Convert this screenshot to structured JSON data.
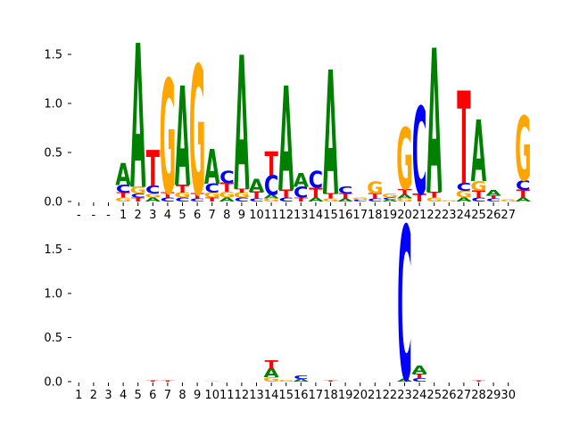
{
  "chart_data": [
    {
      "type": "sequence-logo",
      "title": "",
      "xlabel": "",
      "ylabel": "",
      "ylim": [
        0,
        1.6
      ],
      "yticks": [
        "0.0",
        "0.5",
        "1.0",
        "1.5"
      ],
      "grid": false,
      "positions": [
        "-",
        "-",
        "-",
        "1",
        "2",
        "3",
        "4",
        "5",
        "6",
        "7",
        "8",
        "9",
        "10",
        "11",
        "12",
        "13",
        "14",
        "15",
        "16",
        "17",
        "18",
        "19",
        "20",
        "21",
        "22",
        "23",
        "24",
        "25",
        "26",
        "27"
      ],
      "stacks": [
        [],
        [],
        [],
        [
          [
            "G",
            0.04
          ],
          [
            "T",
            0.05
          ],
          [
            "C",
            0.08
          ],
          [
            "A",
            0.22
          ]
        ],
        [
          [
            "T",
            0.04
          ],
          [
            "C",
            0.04
          ],
          [
            "G",
            0.07
          ],
          [
            "A",
            1.45
          ]
        ],
        [
          [
            "A",
            0.04
          ],
          [
            "G",
            0.04
          ],
          [
            "C",
            0.08
          ],
          [
            "T",
            0.36
          ]
        ],
        [
          [
            "C",
            0.04
          ],
          [
            "T",
            0.05
          ],
          [
            "G",
            1.15
          ]
        ],
        [
          [
            "C",
            0.04
          ],
          [
            "G",
            0.05
          ],
          [
            "T",
            0.08
          ],
          [
            "A",
            1.0
          ]
        ],
        [
          [
            "C",
            0.03
          ],
          [
            "T",
            0.05
          ],
          [
            "G",
            1.3
          ]
        ],
        [
          [
            "T",
            0.04
          ],
          [
            "G",
            0.05
          ],
          [
            "C",
            0.09
          ],
          [
            "A",
            0.35
          ]
        ],
        [
          [
            "A",
            0.04
          ],
          [
            "G",
            0.06
          ],
          [
            "T",
            0.09
          ],
          [
            "C",
            0.12
          ]
        ],
        [
          [
            "C",
            0.04
          ],
          [
            "G",
            0.05
          ],
          [
            "T",
            0.04
          ],
          [
            "A",
            1.35
          ]
        ],
        [
          [
            "C",
            0.03
          ],
          [
            "T",
            0.07
          ],
          [
            "A",
            0.13
          ]
        ],
        [
          [
            "G",
            0.03
          ],
          [
            "A",
            0.04
          ],
          [
            "C",
            0.2
          ],
          [
            "T",
            0.24
          ]
        ],
        [
          [
            "C",
            0.04
          ],
          [
            "T",
            0.08
          ],
          [
            "A",
            1.05
          ]
        ],
        [
          [
            "T",
            0.04
          ],
          [
            "C",
            0.11
          ],
          [
            "A",
            0.14
          ]
        ],
        [
          [
            "A",
            0.04
          ],
          [
            "T",
            0.1
          ],
          [
            "C",
            0.17
          ]
        ],
        [
          [
            "G",
            0.03
          ],
          [
            "T",
            0.05
          ],
          [
            "A",
            1.25
          ]
        ],
        [
          [
            "A",
            0.03
          ],
          [
            "T",
            0.05
          ],
          [
            "C",
            0.07
          ]
        ],
        [
          [
            "C",
            0.02
          ],
          [
            "G",
            0.02
          ]
        ],
        [
          [
            "C",
            0.03
          ],
          [
            "T",
            0.05
          ],
          [
            "G",
            0.12
          ]
        ],
        [
          [
            "A",
            0.02
          ],
          [
            "C",
            0.02
          ],
          [
            "G",
            0.04
          ]
        ],
        [
          [
            "G",
            0.03
          ],
          [
            "A",
            0.04
          ],
          [
            "T",
            0.06
          ],
          [
            "G",
            0.62
          ]
        ],
        [
          [
            "T",
            0.08
          ],
          [
            "C",
            0.88
          ]
        ],
        [
          [
            "G",
            0.04
          ],
          [
            "T",
            0.06
          ],
          [
            "A",
            1.45
          ]
        ],
        [
          [
            "G",
            0.01
          ]
        ],
        [
          [
            "A",
            0.04
          ],
          [
            "G",
            0.07
          ],
          [
            "C",
            0.08
          ],
          [
            "T",
            0.93
          ]
        ],
        [
          [
            "C",
            0.04
          ],
          [
            "T",
            0.07
          ],
          [
            "G",
            0.1
          ],
          [
            "A",
            0.62
          ]
        ],
        [
          [
            "C",
            0.03
          ],
          [
            "T",
            0.03
          ],
          [
            "A",
            0.06
          ]
        ],
        [
          [
            "G",
            0.02
          ]
        ],
        [
          [
            "A",
            0.04
          ],
          [
            "T",
            0.08
          ],
          [
            "C",
            0.1
          ],
          [
            "G",
            0.65
          ]
        ]
      ]
    },
    {
      "type": "sequence-logo",
      "title": "",
      "xlabel": "",
      "ylabel": "",
      "ylim": [
        0,
        1.85
      ],
      "yticks": [
        "0.0",
        "0.5",
        "1.0",
        "1.5"
      ],
      "grid": false,
      "positions": [
        "1",
        "2",
        "3",
        "4",
        "5",
        "6",
        "7",
        "8",
        "9",
        "10",
        "11",
        "12",
        "13",
        "14",
        "15",
        "16",
        "17",
        "18",
        "19",
        "20",
        "21",
        "22",
        "23",
        "24",
        "25",
        "26",
        "27",
        "28",
        "29",
        "30"
      ],
      "stacks": [
        [],
        [],
        [],
        [],
        [],
        [
          [
            "T",
            0.01
          ]
        ],
        [
          [
            "T",
            0.01
          ]
        ],
        [],
        [],
        [
          [
            "G",
            0.005
          ]
        ],
        [],
        [],
        [],
        [
          [
            "G",
            0.05
          ],
          [
            "A",
            0.1
          ],
          [
            "T",
            0.09
          ]
        ],
        [
          [
            "G",
            0.02
          ]
        ],
        [
          [
            "A",
            0.03
          ],
          [
            "C",
            0.04
          ]
        ],
        [],
        [
          [
            "T",
            0.015
          ]
        ],
        [],
        [],
        [],
        [],
        [
          [
            "A",
            0.03
          ],
          [
            "C",
            1.72
          ]
        ],
        [
          [
            "C",
            0.04
          ],
          [
            "T",
            0.05
          ],
          [
            "A",
            0.09
          ]
        ],
        [],
        [],
        [],
        [
          [
            "T",
            0.01
          ]
        ],
        [],
        []
      ]
    }
  ],
  "colors": {
    "A": "#008000",
    "C": "#0000FF",
    "G": "#FFA500",
    "T": "#FF0000"
  }
}
